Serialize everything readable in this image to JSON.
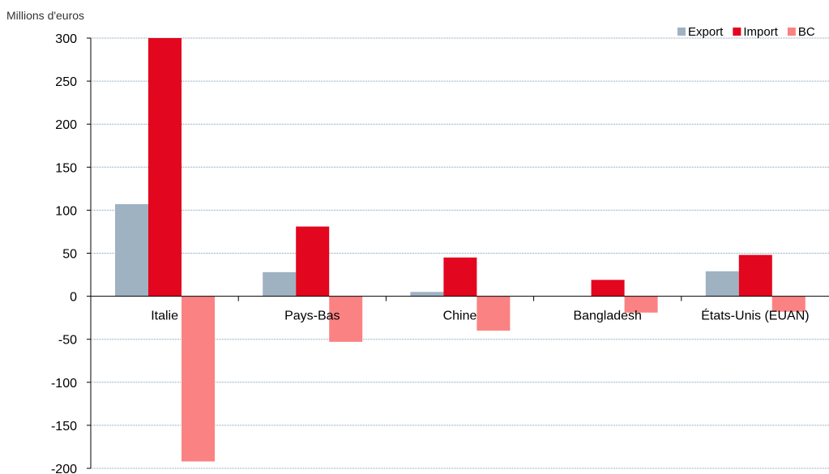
{
  "chart_data": {
    "type": "bar",
    "ylabel": "Millions d'euros",
    "ylim": [
      -200,
      300
    ],
    "yticks": [
      300,
      250,
      200,
      150,
      100,
      50,
      0,
      -50,
      -100,
      -150,
      -200
    ],
    "grid": true,
    "legend_position": "top-right",
    "categories": [
      "Italie",
      "Pays-Bas",
      "Chine",
      "Bangladesh",
      "États-Unis (EUAN)"
    ],
    "series": [
      {
        "name": "Export",
        "color": "#9fb2c2",
        "values": [
          107,
          28,
          5,
          0,
          29
        ]
      },
      {
        "name": "Import",
        "color": "#e2061e",
        "values": [
          300,
          81,
          45,
          19,
          48
        ]
      },
      {
        "name": "BC",
        "color": "#fb8283",
        "values": [
          -192,
          -53,
          -40,
          -19,
          -18
        ]
      }
    ]
  }
}
